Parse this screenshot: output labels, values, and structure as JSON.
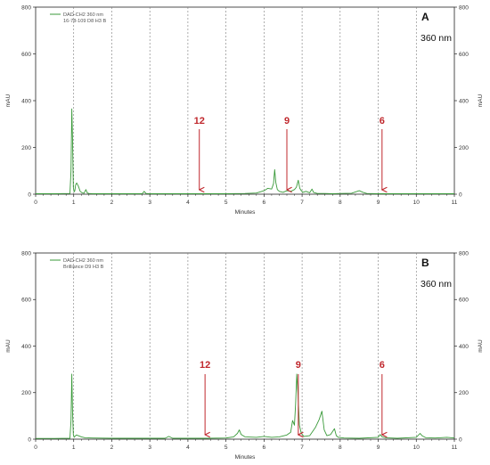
{
  "chart_data": [
    {
      "type": "line",
      "panel_letter": "A",
      "wavelength_label": "360 nm",
      "legend": {
        "position": "top-left",
        "lines": [
          "DAD-CH2 360 nm",
          "16-78-109 D8 H3 B"
        ]
      },
      "xlabel": "Minutes",
      "ylabel_left": "mAU",
      "ylabel_right": "mAU",
      "xlim": [
        0,
        11
      ],
      "ylim": [
        0,
        800
      ],
      "x_ticks": [
        "0",
        "1",
        "2",
        "3",
        "4",
        "5",
        "6",
        "7",
        "8",
        "9",
        "10",
        "11"
      ],
      "y_ticks": [
        "0",
        "200",
        "400",
        "600",
        "800"
      ],
      "gridlines": "vertical dashed",
      "series": [
        {
          "color": "#3a9a3a",
          "x": [
            0,
            0.5,
            0.9,
            0.93,
            0.95,
            0.97,
            0.99,
            1.01,
            1.03,
            1.05,
            1.08,
            1.12,
            1.17,
            1.22,
            1.27,
            1.32,
            1.36,
            1.4,
            1.5,
            2.0,
            2.5,
            2.8,
            2.85,
            2.9,
            3.0,
            3.5,
            4.0,
            4.5,
            5.0,
            5.5,
            5.8,
            6.0,
            6.1,
            6.2,
            6.25,
            6.28,
            6.31,
            6.35,
            6.4,
            6.5,
            6.6,
            6.7,
            6.8,
            6.85,
            6.9,
            6.94,
            6.98,
            7.02,
            7.1,
            7.2,
            7.26,
            7.3,
            7.4,
            7.6,
            7.8,
            8.0,
            8.3,
            8.5,
            8.6,
            8.7,
            9.0,
            9.5,
            10.0,
            10.5,
            11.0
          ],
          "y": [
            2,
            2,
            3,
            100,
            365,
            240,
            30,
            10,
            15,
            40,
            48,
            35,
            12,
            6,
            4,
            20,
            5,
            3,
            2,
            2,
            2,
            2,
            12,
            3,
            2,
            2,
            2,
            2,
            2,
            3,
            5,
            15,
            25,
            22,
            45,
            105,
            50,
            20,
            12,
            8,
            15,
            12,
            20,
            30,
            60,
            25,
            15,
            8,
            12,
            6,
            22,
            8,
            3,
            3,
            2,
            3,
            4,
            15,
            8,
            3,
            2,
            2,
            2,
            2,
            2
          ]
        }
      ],
      "annotations": [
        {
          "label": "12",
          "x": 4.3,
          "color": "#c0282d"
        },
        {
          "label": "9",
          "x": 6.6,
          "color": "#c0282d"
        },
        {
          "label": "6",
          "x": 9.1,
          "color": "#c0282d"
        }
      ]
    },
    {
      "type": "line",
      "panel_letter": "B",
      "wavelength_label": "360 nm",
      "legend": {
        "position": "top-left",
        "lines": [
          "DAD-CH2 360 nm",
          "Brilliance D9 H3 B"
        ]
      },
      "xlabel": "Minutes",
      "ylabel_left": "mAU",
      "ylabel_right": "mAU",
      "xlim": [
        0,
        11
      ],
      "ylim": [
        0,
        800
      ],
      "x_ticks": [
        "0",
        "1",
        "2",
        "3",
        "4",
        "5",
        "6",
        "7",
        "8",
        "9",
        "10",
        "11"
      ],
      "y_ticks": [
        "0",
        "200",
        "400",
        "600",
        "800"
      ],
      "gridlines": "vertical dashed",
      "series": [
        {
          "color": "#3a9a3a",
          "x": [
            0,
            0.5,
            0.9,
            0.93,
            0.95,
            0.97,
            0.99,
            1.01,
            1.03,
            1.07,
            1.12,
            1.2,
            1.3,
            1.5,
            2.0,
            3.0,
            3.4,
            3.5,
            3.6,
            4.0,
            4.5,
            5.0,
            5.2,
            5.3,
            5.35,
            5.4,
            5.5,
            5.8,
            6.0,
            6.2,
            6.4,
            6.6,
            6.7,
            6.75,
            6.8,
            6.83,
            6.86,
            6.89,
            6.93,
            6.98,
            7.05,
            7.2,
            7.35,
            7.45,
            7.52,
            7.58,
            7.65,
            7.75,
            7.85,
            7.9,
            7.95,
            8.1,
            8.5,
            9.0,
            9.05,
            9.1,
            9.2,
            9.5,
            10.0,
            10.1,
            10.15,
            10.25,
            10.5,
            10.8,
            11.0
          ],
          "y": [
            3,
            3,
            4,
            80,
            280,
            120,
            20,
            8,
            12,
            18,
            15,
            10,
            6,
            5,
            4,
            4,
            4,
            12,
            4,
            4,
            4,
            5,
            10,
            25,
            40,
            20,
            10,
            8,
            12,
            8,
            10,
            18,
            30,
            80,
            60,
            150,
            280,
            200,
            60,
            25,
            12,
            15,
            50,
            85,
            120,
            40,
            15,
            20,
            45,
            15,
            8,
            5,
            4,
            8,
            20,
            10,
            6,
            4,
            8,
            25,
            15,
            6,
            5,
            8,
            5
          ]
        }
      ],
      "annotations": [
        {
          "label": "12",
          "x": 4.45,
          "color": "#c0282d"
        },
        {
          "label": "9",
          "x": 6.9,
          "color": "#c0282d"
        },
        {
          "label": "6",
          "x": 9.1,
          "color": "#c0282d"
        }
      ]
    }
  ]
}
